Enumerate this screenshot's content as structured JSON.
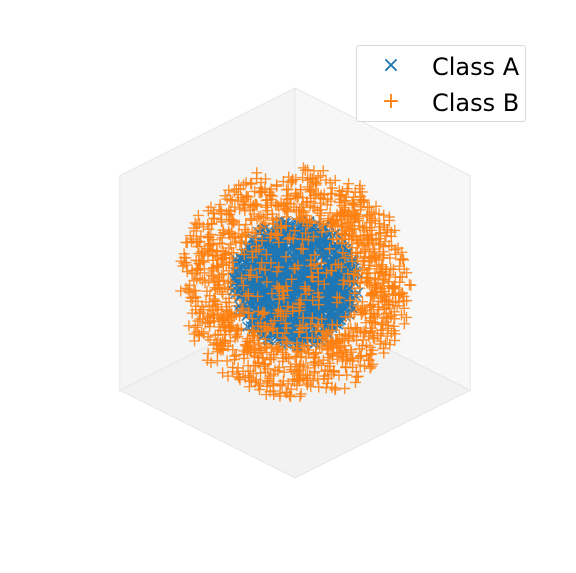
{
  "chart_data": {
    "type": "scatter",
    "projection": "3d",
    "title": "",
    "xlabel": "",
    "ylabel": "",
    "zlabel": "",
    "xlim": [
      -1.05,
      1.05
    ],
    "ylim": [
      -1.05,
      1.05
    ],
    "zlim": [
      -1.05,
      1.05
    ],
    "axes_visible": false,
    "grid": true,
    "legend_position": "top-right",
    "series": [
      {
        "name": "Class A",
        "marker": "x",
        "color": "#1f77b4",
        "distribution": "points uniformly distributed inside a sphere, radius up to 0.55",
        "n_points": 1500,
        "radius_range": [
          0.0,
          0.55
        ]
      },
      {
        "name": "Class B",
        "marker": "+",
        "color": "#ff7f0e",
        "distribution": "points in a spherical shell around Class A, radius 0.6 to 1.0",
        "n_points": 1500,
        "radius_range": [
          0.6,
          1.0
        ]
      }
    ]
  },
  "legend": {
    "items": [
      {
        "label": "Class A",
        "marker_glyph": "×",
        "color": "#1f77b4"
      },
      {
        "label": "Class B",
        "marker_glyph": "+",
        "color": "#ff7f0e"
      }
    ]
  }
}
